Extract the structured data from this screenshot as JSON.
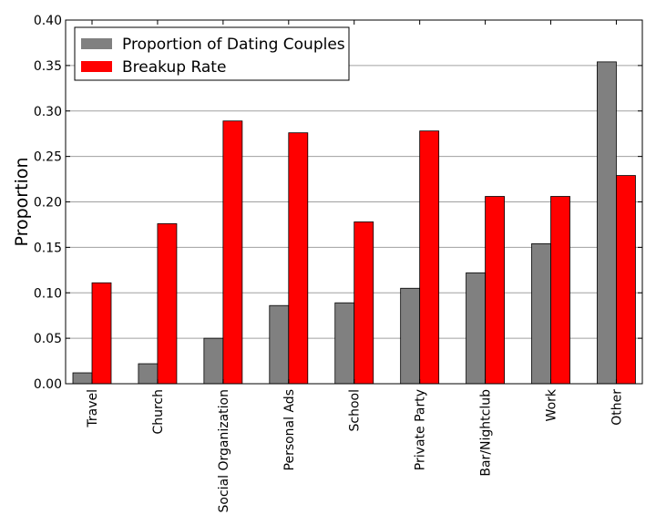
{
  "chart_data": {
    "type": "bar",
    "title": "",
    "xlabel": "",
    "ylabel": "Proportion",
    "ylim": [
      0,
      0.4
    ],
    "yticks": [
      "0.00",
      "0.05",
      "0.10",
      "0.15",
      "0.20",
      "0.25",
      "0.30",
      "0.35",
      "0.40"
    ],
    "grid": true,
    "legend_position": "top-left",
    "categories": [
      "Travel",
      "Church",
      "Social Organization",
      "Personal Ads",
      "School",
      "Private Party",
      "Bar/Nightclub",
      "Work",
      "Other"
    ],
    "series": [
      {
        "name": "Proportion of Dating Couples",
        "color": "#808080",
        "values": [
          0.012,
          0.022,
          0.05,
          0.086,
          0.089,
          0.105,
          0.122,
          0.154,
          0.354
        ]
      },
      {
        "name": "Breakup Rate",
        "color": "#ff0000",
        "values": [
          0.111,
          0.176,
          0.289,
          0.276,
          0.178,
          0.278,
          0.206,
          0.206,
          0.229
        ]
      }
    ]
  }
}
